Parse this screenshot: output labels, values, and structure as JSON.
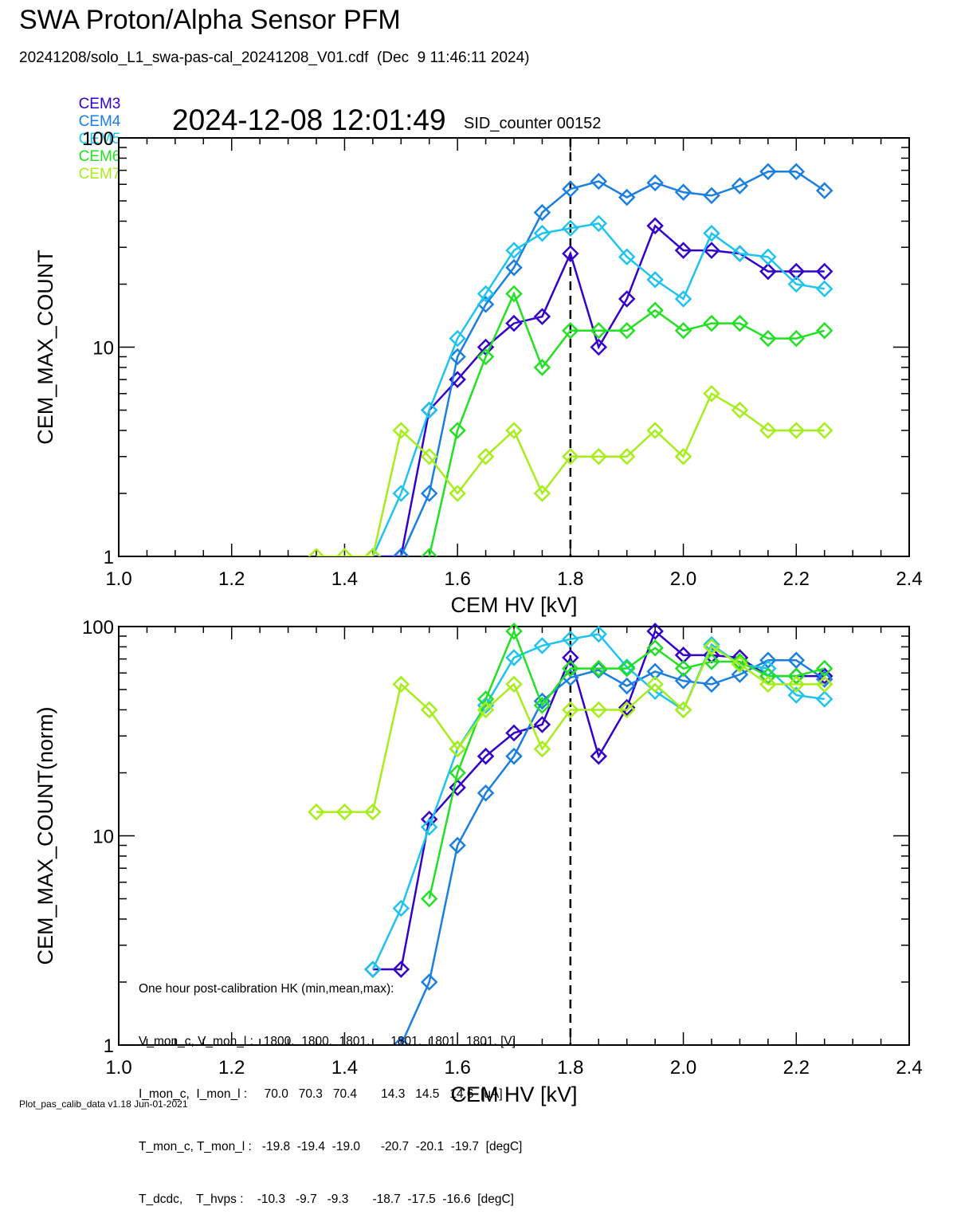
{
  "header": {
    "title": "SWA Proton/Alpha Sensor PFM",
    "file_line": "20241208/solo_L1_swa-pas-cal_20241208_V01.cdf  (Dec  9 11:46:11 2024)",
    "timestamp": "2024-12-08 12:01:49",
    "sid_counter": "SID_counter 00152"
  },
  "legend": [
    {
      "name": "CEM3",
      "color": "#3300cc"
    },
    {
      "name": "CEM4",
      "color": "#1a7fe0"
    },
    {
      "name": "CEM5",
      "color": "#1ec3f0"
    },
    {
      "name": "CEM6",
      "color": "#22e022"
    },
    {
      "name": "CEM7",
      "color": "#a6ee1a"
    }
  ],
  "hk_box": {
    "heading": "One hour post-calibration HK (min,mean,max):",
    "rows": [
      "V_mon_c, V_mon_l :   1800.  1800.  1801.      1801.  1801.  1801. [V]",
      "I_mon_c,  I_mon_l :     70.0   70.3   70.4       14.3   14.5   14.6  [uA]",
      "T_mon_c, T_mon_l :   -19.8  -19.4  -19.0      -20.7  -20.1  -19.7  [degC]",
      "T_dcdc,    T_hvps :    -10.3   -9.7   -9.3       -18.7  -17.5  -16.6  [degC]"
    ]
  },
  "footer": "Plot_pas_calib_data v1.18 Jun-01-2021",
  "chart_data": [
    {
      "type": "line",
      "xlabel": "CEM HV [kV]",
      "ylabel": "CEM_MAX_COUNT",
      "xlim": [
        1.0,
        2.4
      ],
      "ylim": [
        1,
        100
      ],
      "yscale": "log",
      "xticks": [
        "1.0",
        "1.2",
        "1.4",
        "1.6",
        "1.8",
        "2.0",
        "2.2",
        "2.4"
      ],
      "yticks": [
        "1",
        "10",
        "100"
      ],
      "vline_x": 1.8,
      "x": [
        1.35,
        1.4,
        1.45,
        1.5,
        1.55,
        1.6,
        1.65,
        1.7,
        1.75,
        1.8,
        1.85,
        1.9,
        1.95,
        2.0,
        2.05,
        2.1,
        2.15,
        2.2,
        2.25
      ],
      "series": [
        {
          "name": "CEM3",
          "color": "#3300cc",
          "values": [
            null,
            null,
            1,
            1,
            5,
            7,
            10,
            13,
            14,
            28,
            10,
            17,
            38,
            29,
            29,
            28,
            23,
            23,
            23
          ]
        },
        {
          "name": "CEM4",
          "color": "#1a7fe0",
          "values": [
            null,
            null,
            null,
            1,
            2,
            9,
            16,
            24,
            44,
            57,
            62,
            52,
            61,
            55,
            53,
            59,
            69,
            69,
            56
          ]
        },
        {
          "name": "CEM5",
          "color": "#1ec3f0",
          "values": [
            null,
            null,
            1,
            2,
            5,
            11,
            18,
            29,
            35,
            37,
            39,
            27,
            21,
            17,
            35,
            28,
            27,
            20,
            19
          ]
        },
        {
          "name": "CEM6",
          "color": "#22e022",
          "values": [
            null,
            null,
            null,
            null,
            1,
            4,
            9,
            18,
            8,
            12,
            12,
            12,
            15,
            12,
            13,
            13,
            11,
            11,
            12
          ]
        },
        {
          "name": "CEM7",
          "color": "#a6ee1a",
          "values": [
            1,
            1,
            1,
            4,
            3,
            2,
            3,
            4,
            2,
            3,
            3,
            3,
            4,
            3,
            6,
            5,
            4,
            4,
            4
          ]
        }
      ]
    },
    {
      "type": "line",
      "xlabel": "CEM HV [kV]",
      "ylabel": "CEM_MAX_COUNT(norm)",
      "xlim": [
        1.0,
        2.4
      ],
      "ylim": [
        1,
        100
      ],
      "yscale": "log",
      "xticks": [
        "1.0",
        "1.2",
        "1.4",
        "1.6",
        "1.8",
        "2.0",
        "2.2",
        "2.4"
      ],
      "yticks": [
        "1",
        "10",
        "100"
      ],
      "vline_x": 1.8,
      "x": [
        1.35,
        1.4,
        1.45,
        1.5,
        1.55,
        1.6,
        1.65,
        1.7,
        1.75,
        1.8,
        1.85,
        1.9,
        1.95,
        2.0,
        2.05,
        2.1,
        2.15,
        2.2,
        2.25
      ],
      "series": [
        {
          "name": "CEM3",
          "color": "#3300cc",
          "values": [
            null,
            null,
            2.3,
            2.3,
            12,
            17,
            24,
            31,
            34,
            71,
            24,
            41,
            95,
            73,
            73,
            71,
            58,
            58,
            58
          ]
        },
        {
          "name": "CEM4",
          "color": "#1a7fe0",
          "values": [
            null,
            null,
            null,
            1,
            2,
            9,
            16,
            24,
            44,
            57,
            62,
            52,
            61,
            55,
            53,
            59,
            69,
            69,
            56
          ]
        },
        {
          "name": "CEM5",
          "color": "#1ec3f0",
          "values": [
            null,
            null,
            2.3,
            4.5,
            11,
            26,
            42,
            71,
            81,
            87,
            92,
            64,
            49,
            40,
            82,
            66,
            63,
            47,
            45
          ]
        },
        {
          "name": "CEM6",
          "color": "#22e022",
          "values": [
            null,
            null,
            null,
            null,
            5,
            20,
            45,
            95,
            42,
            63,
            63,
            63,
            79,
            63,
            68,
            68,
            58,
            58,
            63
          ]
        },
        {
          "name": "CEM7",
          "color": "#a6ee1a",
          "values": [
            13,
            13,
            13,
            53,
            40,
            26,
            40,
            53,
            26,
            40,
            40,
            40,
            53,
            40,
            80,
            66,
            53,
            53,
            53
          ]
        }
      ]
    }
  ]
}
